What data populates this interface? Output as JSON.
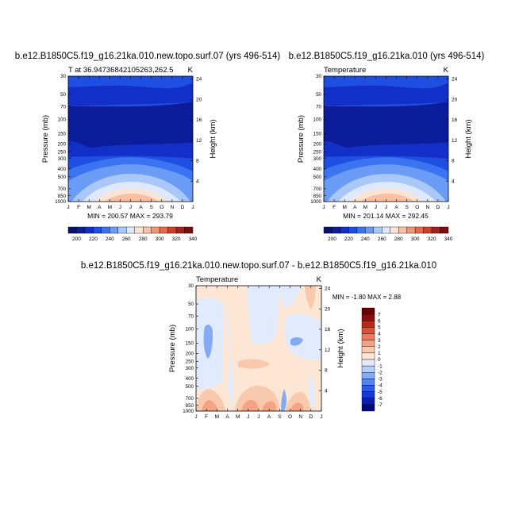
{
  "chart_data": [
    {
      "type": "heatmap",
      "id": "top-left",
      "title": "b.e12.B1850C5.f19_g16.21ka.010.new.topo.surf.07 (yrs 496-514)",
      "subtitle_left": "T at 36.94736842105263,262.5",
      "subtitle_right": "K",
      "ylabel_left": "Pressure (mb)",
      "ylabel_right": "Height (km)",
      "x_ticks": [
        "J",
        "F",
        "M",
        "A",
        "M",
        "J",
        "J",
        "A",
        "S",
        "O",
        "N",
        "D",
        "J"
      ],
      "pressure_ticks": [
        "30",
        "50",
        "70",
        "100",
        "150",
        "200",
        "250",
        "300",
        "400",
        "500",
        "700",
        "850",
        "1000"
      ],
      "height_ticks": [
        "24",
        "20",
        "16",
        "12",
        "8",
        "4"
      ],
      "min_max_label": "MIN = 200.57  MAX = 293.79",
      "colorbar_labels": [
        "200",
        "220",
        "240",
        "260",
        "280",
        "300",
        "320",
        "340"
      ],
      "contour_bands_note": "temperature (K) contours, 10 K interval, warmest near surface in summer"
    },
    {
      "type": "heatmap",
      "id": "top-right",
      "title": "b.e12.B1850C5.f19_g16.21ka.010 (yrs 496-514)",
      "subtitle_left": "Temperature",
      "subtitle_right": "K",
      "ylabel_left": "Pressure (mb)",
      "ylabel_right": "Height (km)",
      "x_ticks": [
        "J",
        "F",
        "M",
        "A",
        "M",
        "J",
        "J",
        "A",
        "S",
        "O",
        "N",
        "D",
        "J"
      ],
      "pressure_ticks": [
        "30",
        "50",
        "70",
        "100",
        "150",
        "200",
        "250",
        "300",
        "400",
        "500",
        "700",
        "850",
        "1000"
      ],
      "height_ticks": [
        "24",
        "20",
        "16",
        "12",
        "8",
        "4"
      ],
      "min_max_label": "MIN = 201.14  MAX = 292.45",
      "colorbar_labels": [
        "200",
        "220",
        "240",
        "260",
        "280",
        "300",
        "320",
        "340"
      ]
    },
    {
      "type": "heatmap",
      "id": "bottom-diff",
      "title": "b.e12.B1850C5.f19_g16.21ka.010.new.topo.surf.07 - b.e12.B1850C5.f19_g16.21ka.010",
      "subtitle_left": "Temperature",
      "subtitle_right": "K",
      "ylabel_left": "Pressure (mb)",
      "ylabel_right": "Height (km)",
      "x_ticks": [
        "J",
        "F",
        "M",
        "A",
        "M",
        "J",
        "J",
        "A",
        "S",
        "O",
        "N",
        "D",
        "J"
      ],
      "pressure_ticks": [
        "30",
        "50",
        "70",
        "100",
        "150",
        "200",
        "250",
        "300",
        "400",
        "500",
        "700",
        "850",
        "1000"
      ],
      "height_ticks": [
        "24",
        "20",
        "16",
        "12",
        "8",
        "4"
      ],
      "min_max_label": "MIN =  -1.80 MAX =   2.88",
      "colorbar_labels": [
        "7",
        "6",
        "5",
        "4",
        "3",
        "2",
        "1",
        "0",
        "-1",
        "-2",
        "-3",
        "-4",
        "-5",
        "-6",
        "-7"
      ]
    }
  ],
  "colors": {
    "temp_scale": [
      "#08116b",
      "#0c1d9c",
      "#1230c8",
      "#1f4fe0",
      "#3a74f0",
      "#6b9cf5",
      "#a9c8f9",
      "#dfe9fd",
      "#fde4d2",
      "#f9c0a3",
      "#f29576",
      "#e6694e",
      "#cf3f2f",
      "#a8201b",
      "#7a0e0d"
    ],
    "diff_scale": [
      "#000a7a",
      "#0a1eab",
      "#1438d6",
      "#2b5be8",
      "#5384f0",
      "#84aaf5",
      "#b5cdf9",
      "#e1ebfd",
      "#fde6d4",
      "#f9c9ad",
      "#f4a484",
      "#ed7b5b",
      "#df4f35",
      "#bf2418",
      "#8f0a0a",
      "#6a0000"
    ]
  }
}
